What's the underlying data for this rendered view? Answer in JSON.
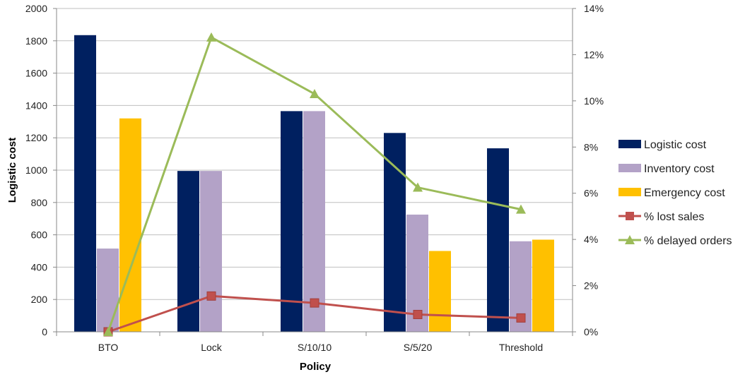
{
  "chart_data": {
    "type": "bar",
    "categories": [
      "BTO",
      "Lock",
      "S/10/10",
      "S/5/20",
      "Threshold"
    ],
    "xlabel": "Policy",
    "ylabel": "Logistic cost",
    "ylim": [
      0,
      2000
    ],
    "yticks": [
      0,
      200,
      400,
      600,
      800,
      1000,
      1200,
      1400,
      1600,
      1800,
      2000
    ],
    "y2lim": [
      0,
      14
    ],
    "y2ticks": [
      "0%",
      "2%",
      "4%",
      "6%",
      "8%",
      "10%",
      "12%",
      "14%"
    ],
    "grid": true,
    "legend_position": "right",
    "series": [
      {
        "name": "Logistic cost",
        "kind": "bar",
        "axis": "left",
        "color": "#002060",
        "values": [
          1835,
          995,
          1365,
          1230,
          1135
        ]
      },
      {
        "name": "Inventory cost",
        "kind": "bar",
        "axis": "left",
        "color": "#B3A2C7",
        "values": [
          515,
          995,
          1365,
          725,
          560
        ]
      },
      {
        "name": "Emergency cost",
        "kind": "bar",
        "axis": "left",
        "color": "#FFC000",
        "values": [
          1320,
          null,
          null,
          500,
          570
        ]
      },
      {
        "name": "% lost sales",
        "kind": "line",
        "axis": "right",
        "color": "#C0504D",
        "marker": "square",
        "values": [
          0.0,
          1.55,
          1.25,
          0.75,
          0.6
        ]
      },
      {
        "name": "% delayed orders",
        "kind": "line",
        "axis": "right",
        "color": "#9BBB59",
        "marker": "triangle",
        "values": [
          0.0,
          12.75,
          10.3,
          6.25,
          5.3
        ]
      }
    ]
  }
}
